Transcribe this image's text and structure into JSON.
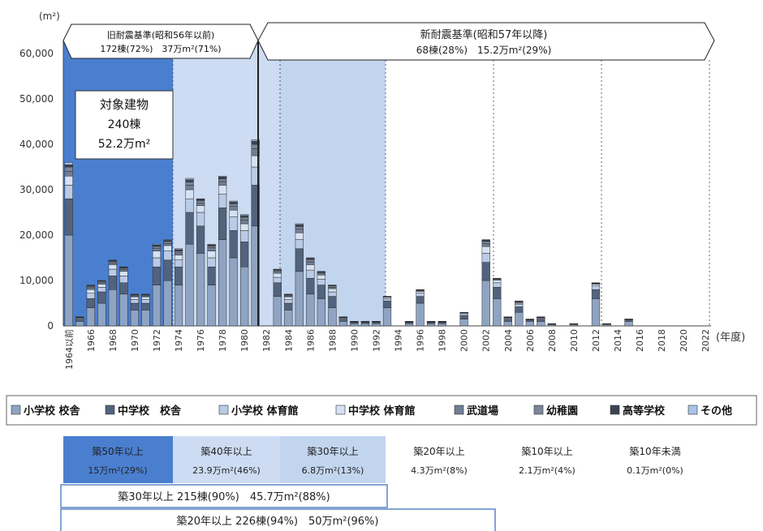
{
  "chart_data": {
    "type": "bar",
    "stacked": true,
    "y_unit": "(m²)",
    "x_unit": "(年度)",
    "ylim": [
      0,
      60000
    ],
    "y_ticks": [
      "0",
      "10,000",
      "20,000",
      "30,000",
      "40,000",
      "50,000",
      "60,000"
    ],
    "categories": [
      "1964以前",
      "1965",
      "1966",
      "1967",
      "1968",
      "1969",
      "1970",
      "1971",
      "1972",
      "1973",
      "1974",
      "1975",
      "1976",
      "1977",
      "1978",
      "1979",
      "1980",
      "1981",
      "1982",
      "1983",
      "1984",
      "1985",
      "1986",
      "1987",
      "1988",
      "1989",
      "1990",
      "1991",
      "1992",
      "1993",
      "1994",
      "1995",
      "1996",
      "1997",
      "1998",
      "1999",
      "2000",
      "2001",
      "2002",
      "2003",
      "2004",
      "2005",
      "2006",
      "2007",
      "2008",
      "2009",
      "2010",
      "2011",
      "2012",
      "2013",
      "2014",
      "2015",
      "2016",
      "2017",
      "2018",
      "2019",
      "2020",
      "2021",
      "2022"
    ],
    "x_tick_labels": [
      "1964以前",
      "1966",
      "1968",
      "1970",
      "1972",
      "1974",
      "1976",
      "1978",
      "1980",
      "1982",
      "1984",
      "1986",
      "1988",
      "1990",
      "1992",
      "1994",
      "1996",
      "1998",
      "2000",
      "2002",
      "2004",
      "2006",
      "2008",
      "2010",
      "2012",
      "2014",
      "2016",
      "2018",
      "2020",
      "2022"
    ],
    "legend": [
      "小学校 校舎",
      "中学校　校舎",
      "小学校 体育館",
      "中学校 体育館",
      "武道場",
      "幼稚園",
      "高等学校",
      "その他"
    ],
    "legend_position": "bottom",
    "totals": [
      36000,
      2000,
      9000,
      10000,
      14500,
      13000,
      7000,
      7000,
      18000,
      19000,
      17000,
      32500,
      28000,
      18000,
      33000,
      27500,
      24500,
      41000,
      0,
      12500,
      7000,
      22500,
      15000,
      12000,
      9000,
      2000,
      1000,
      1000,
      1000,
      6500,
      0,
      1000,
      8000,
      1000,
      1000,
      0,
      3000,
      0,
      19000,
      10500,
      2000,
      5500,
      1500,
      2000,
      500,
      0,
      500,
      0,
      9500,
      500,
      0,
      1500,
      0,
      0,
      0,
      0,
      0,
      0,
      0
    ],
    "series": [
      {
        "name": "小学校 校舎",
        "values": [
          20000,
          1000,
          4000,
          5000,
          8000,
          7000,
          3500,
          3500,
          9000,
          10000,
          9000,
          18000,
          16000,
          9000,
          19000,
          15000,
          13000,
          22000,
          0,
          6500,
          3500,
          12000,
          7000,
          6000,
          4000,
          1000,
          500,
          500,
          500,
          4000,
          0,
          500,
          5000,
          500,
          500,
          0,
          1500,
          0,
          10000,
          6000,
          1000,
          3000,
          1000,
          1000,
          300,
          0,
          300,
          0,
          6000,
          300,
          0,
          1000,
          0,
          0,
          0,
          0,
          0,
          0,
          0
        ]
      },
      {
        "name": "中学校　校舎",
        "values": [
          8000,
          500,
          2000,
          2500,
          3000,
          2500,
          1500,
          1500,
          4000,
          4500,
          4000,
          7000,
          6000,
          4000,
          7000,
          6000,
          5500,
          9000,
          0,
          3000,
          1500,
          5000,
          3500,
          3000,
          2500,
          500,
          300,
          300,
          300,
          1500,
          0,
          300,
          1500,
          300,
          300,
          0,
          800,
          0,
          4000,
          2500,
          500,
          1200,
          300,
          500,
          100,
          0,
          100,
          0,
          2000,
          100,
          0,
          300,
          0,
          0,
          0,
          0,
          0,
          0,
          0
        ]
      },
      {
        "name": "小学校 体育館",
        "values": [
          3000,
          200,
          1200,
          1000,
          1500,
          1500,
          800,
          800,
          2000,
          2000,
          1600,
          3000,
          3000,
          2000,
          3000,
          3000,
          2500,
          4000,
          0,
          1200,
          800,
          2000,
          1800,
          1300,
          1000,
          200,
          100,
          100,
          100,
          500,
          0,
          100,
          700,
          100,
          100,
          0,
          400,
          0,
          2000,
          1000,
          200,
          500,
          100,
          200,
          50,
          0,
          50,
          0,
          800,
          50,
          0,
          100,
          0,
          0,
          0,
          0,
          0,
          0,
          0
        ]
      },
      {
        "name": "中学校 体育館",
        "values": [
          2000,
          150,
          800,
          700,
          1000,
          1000,
          600,
          600,
          1500,
          1200,
          1000,
          2000,
          1500,
          1500,
          2000,
          1500,
          1500,
          2500,
          0,
          900,
          600,
          1500,
          1200,
          900,
          700,
          150,
          50,
          50,
          50,
          300,
          0,
          50,
          400,
          50,
          50,
          0,
          200,
          0,
          1500,
          600,
          150,
          300,
          50,
          150,
          30,
          0,
          30,
          0,
          400,
          30,
          0,
          60,
          0,
          0,
          0,
          0,
          0,
          0,
          0
        ]
      },
      {
        "name": "武道場",
        "values": [
          1000,
          50,
          400,
          300,
          400,
          400,
          200,
          200,
          600,
          500,
          500,
          1000,
          600,
          700,
          800,
          800,
          800,
          1500,
          0,
          400,
          200,
          800,
          600,
          400,
          300,
          50,
          20,
          20,
          20,
          100,
          0,
          20,
          200,
          20,
          20,
          0,
          50,
          0,
          600,
          200,
          50,
          200,
          20,
          50,
          10,
          0,
          10,
          0,
          150,
          10,
          0,
          20,
          0,
          0,
          0,
          0,
          0,
          0,
          0
        ]
      },
      {
        "name": "幼稚園",
        "values": [
          1000,
          50,
          300,
          300,
          300,
          300,
          200,
          200,
          400,
          400,
          400,
          700,
          500,
          400,
          600,
          600,
          600,
          1000,
          0,
          300,
          200,
          600,
          500,
          200,
          300,
          50,
          20,
          20,
          20,
          60,
          0,
          20,
          100,
          20,
          20,
          0,
          30,
          0,
          500,
          100,
          50,
          200,
          20,
          50,
          5,
          0,
          5,
          0,
          80,
          5,
          0,
          10,
          0,
          0,
          0,
          0,
          0,
          0,
          0
        ]
      },
      {
        "name": "高等学校",
        "values": [
          500,
          30,
          200,
          100,
          200,
          200,
          100,
          100,
          300,
          250,
          300,
          500,
          300,
          250,
          400,
          400,
          400,
          700,
          0,
          150,
          100,
          400,
          300,
          150,
          150,
          30,
          10,
          10,
          10,
          30,
          0,
          10,
          70,
          10,
          10,
          0,
          15,
          0,
          300,
          70,
          30,
          70,
          10,
          30,
          3,
          0,
          3,
          0,
          50,
          3,
          0,
          6,
          0,
          0,
          0,
          0,
          0,
          0,
          0
        ]
      },
      {
        "name": "その他",
        "values": [
          500,
          20,
          100,
          100,
          100,
          100,
          100,
          100,
          200,
          150,
          200,
          300,
          100,
          150,
          200,
          200,
          200,
          300,
          0,
          50,
          100,
          200,
          100,
          50,
          50,
          20,
          0,
          0,
          0,
          10,
          0,
          0,
          30,
          0,
          0,
          0,
          5,
          0,
          100,
          30,
          20,
          30,
          0,
          20,
          2,
          0,
          2,
          0,
          20,
          2,
          0,
          4,
          0,
          0,
          0,
          0,
          0,
          0,
          0
        ]
      }
    ],
    "header_old_title": "旧耐震基準(昭和56年以前)",
    "header_old_sub": "172棟(72%)　37万m²(71%)",
    "header_new_title": "新耐震基準(昭和57年以降)",
    "header_new_sub": "68棟(28%)　15.2万m²(29%)",
    "target_box": [
      "対象建物",
      "240棟",
      "52.2万m²"
    ],
    "age_bands": [
      {
        "label": "築50年以上",
        "value": "15万m²(29%)"
      },
      {
        "label": "築40年以上",
        "value": "23.9万m²(46%)"
      },
      {
        "label": "築30年以上",
        "value": "6.8万m²(13%)"
      },
      {
        "label": "築20年以上",
        "value": "4.3万m²(8%)"
      },
      {
        "label": "築10年以上",
        "value": "2.1万m²(4%)"
      },
      {
        "label": "築10年未満",
        "value": "0.1万m²(0%)"
      }
    ],
    "summary_30": "築30年以上 215棟(90%)　45.7万m²(88%)",
    "summary_20": "築20年以上 226棟(94%)　50万m²(96%)",
    "colors": {
      "band50": "#4a7fd0",
      "band40": "#cddcf2",
      "band30": "#c2d5ef",
      "series": [
        "#8fa4c2",
        "#52637d",
        "#b9cbe6",
        "#d6e2f3",
        "#6f7f95",
        "#7c8696",
        "#3c4454",
        "#a9c4ea"
      ]
    }
  }
}
